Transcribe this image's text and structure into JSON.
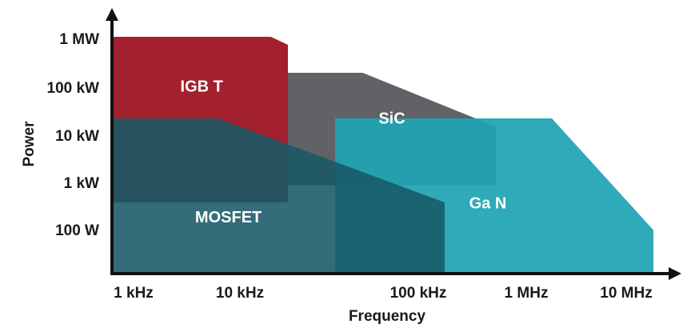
{
  "chart_data": {
    "type": "area",
    "xlabel": "Frequency",
    "ylabel": "Power",
    "x_ticks": [
      "1 kHz",
      "10 kHz",
      "100 kHz",
      "1 MHz",
      "10 MHz"
    ],
    "y_ticks": [
      "1 MW",
      "100 kW",
      "10 kW",
      "1 kW",
      "100 W"
    ],
    "x_scale": "log",
    "y_scale": "log",
    "grid": false,
    "regions": [
      {
        "name": "SiC",
        "label": "SiC",
        "color": "#595a5e",
        "opacity": 0.95,
        "outline": [
          [
            "10 kHz",
            "100 kW"
          ],
          [
            "30 kHz",
            "100 kW"
          ],
          [
            "300 kHz",
            "8 kW"
          ],
          [
            "300 kHz",
            "1.6 kW"
          ],
          [
            "10 kHz",
            "1.6 kW"
          ]
        ]
      },
      {
        "name": "IGBT",
        "label": "IGB T",
        "color": "#a3202f",
        "opacity": 1,
        "outline": [
          [
            "1 kHz",
            "1 MW"
          ],
          [
            "8 kHz",
            "1 MW"
          ],
          [
            "10 kHz",
            "600 kW"
          ],
          [
            "10 kHz",
            "1 kW"
          ],
          [
            "1 kHz",
            "1 kW"
          ]
        ]
      },
      {
        "name": "GaN",
        "label": "Ga N",
        "color": "#1fa4b3",
        "opacity": 0.93,
        "outline": [
          [
            "20 kHz",
            "10 kW"
          ],
          [
            "1 MHz",
            "10 kW"
          ],
          [
            "10 MHz",
            "150 W"
          ],
          [
            "10 MHz",
            "10 W"
          ],
          [
            "20 kHz",
            "10 W"
          ]
        ]
      },
      {
        "name": "MOSFET",
        "label": "MOSFET",
        "color": "#185966",
        "opacity": 0.88,
        "outline": [
          [
            "1 kHz",
            "10 kW"
          ],
          [
            "4 kHz",
            "10 kW"
          ],
          [
            "100 kHz",
            "1 kW"
          ],
          [
            "100 kHz",
            "10 W"
          ],
          [
            "1 kHz",
            "10 W"
          ]
        ]
      }
    ]
  }
}
